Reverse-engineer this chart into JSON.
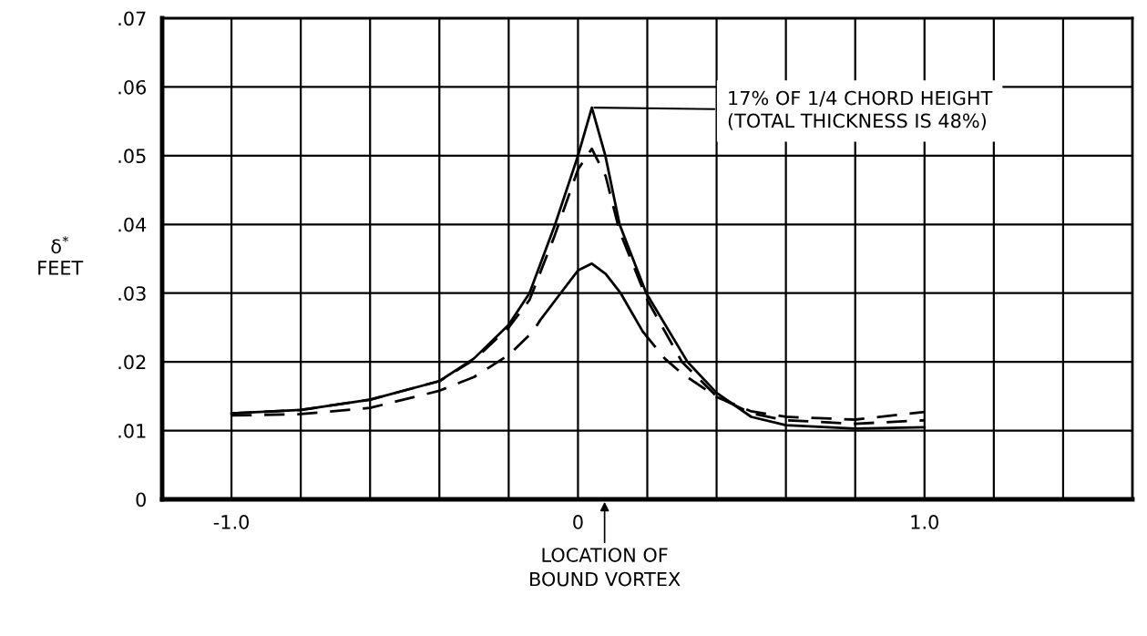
{
  "chart_data": {
    "type": "line",
    "ylabel": "δ$^{*}$\nFEET",
    "xlim": [
      -1.2,
      1.6
    ],
    "ylim": [
      0,
      0.07
    ],
    "xticks": [
      {
        "value": -1.0,
        "label": "-1.0"
      },
      {
        "value": -0.8,
        "label": null
      },
      {
        "value": -0.6,
        "label": null
      },
      {
        "value": -0.4,
        "label": null
      },
      {
        "value": -0.2,
        "label": null
      },
      0,
      {
        "value": 0.2,
        "label": null
      },
      {
        "value": 0.4,
        "label": null
      },
      {
        "value": 0.6,
        "label": null
      },
      {
        "value": 0.8,
        "label": null
      },
      {
        "value": 1.0,
        "label": "1.0"
      },
      {
        "value": 1.2,
        "label": null
      },
      {
        "value": 1.4,
        "label": null
      }
    ],
    "yticks": [
      0,
      {
        "value": 0.01,
        "label": ".01"
      },
      {
        "value": 0.02,
        "label": ".02"
      },
      {
        "value": 0.03,
        "label": ".03"
      },
      {
        "value": 0.04,
        "label": ".04"
      },
      {
        "value": 0.05,
        "label": ".05"
      },
      {
        "value": 0.06,
        "label": ".06"
      },
      {
        "value": 0.07,
        "label": ".07"
      }
    ],
    "grid": true,
    "series": [
      {
        "color": "#000000",
        "line_style": "solid",
        "x": [
          -1.0,
          -0.8,
          -0.6,
          -0.4,
          -0.3,
          -0.2,
          -0.14,
          -0.066,
          0.0,
          0.04,
          0.079,
          0.12,
          0.197,
          0.316,
          0.4,
          0.5,
          0.6,
          0.8,
          1.0
        ],
        "values": [
          0.0125,
          0.013,
          0.0145,
          0.0172,
          0.0205,
          0.0254,
          0.03,
          0.04,
          0.05,
          0.057,
          0.05,
          0.04,
          0.03,
          0.02,
          0.0155,
          0.012,
          0.0108,
          0.0103,
          0.0105
        ]
      },
      {
        "color": "#000000",
        "line_style": "dashed",
        "x": [
          -1.0,
          -0.8,
          -0.6,
          -0.4,
          -0.3,
          -0.2,
          -0.14,
          -0.07,
          0.0,
          0.04,
          0.08,
          0.12,
          0.2,
          0.3,
          0.4,
          0.5,
          0.6,
          0.8,
          1.0
        ],
        "values": [
          0.0125,
          0.013,
          0.0145,
          0.0172,
          0.0203,
          0.025,
          0.029,
          0.038,
          0.048,
          0.051,
          0.047,
          0.039,
          0.029,
          0.02,
          0.015,
          0.0125,
          0.0115,
          0.011,
          0.0115
        ]
      },
      {
        "color": "#000000",
        "line_style": "dashed",
        "x": [
          -1.0,
          -0.8,
          -0.6,
          -0.4,
          -0.3,
          -0.2,
          -0.13,
          -0.11
        ],
        "values": [
          0.0122,
          0.0124,
          0.0133,
          0.0158,
          0.0178,
          0.021,
          0.0244,
          0.026
        ]
      },
      {
        "color": "#000000",
        "line_style": "solid",
        "x": [
          -0.11,
          -0.05,
          0.0,
          0.04,
          0.08,
          0.123,
          0.187
        ],
        "values": [
          0.026,
          0.03,
          0.0333,
          0.0343,
          0.0328,
          0.03,
          0.0244
        ]
      },
      {
        "color": "#000000",
        "line_style": "dashed",
        "x": [
          0.187,
          0.25,
          0.3,
          0.4,
          0.5,
          0.6,
          0.8,
          1.0
        ],
        "values": [
          0.0244,
          0.0205,
          0.0183,
          0.0149,
          0.0128,
          0.012,
          0.0116,
          0.0127
        ]
      }
    ],
    "annotations": [
      {
        "text": "17% OF 1/4 CHORD HEIGHT\n(TOTAL THICKNESS IS 48%)",
        "x": 0.04,
        "y": 0.057
      },
      "LOCATION OF\nBOUND VORTEX"
    ]
  }
}
